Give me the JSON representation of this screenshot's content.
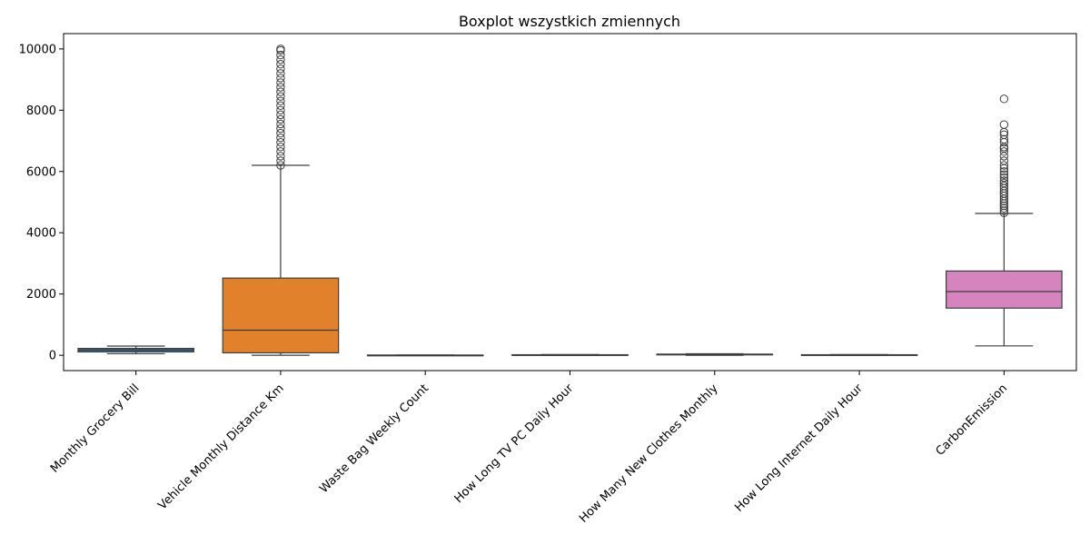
{
  "chart_data": {
    "type": "box",
    "title": "Boxplot wszystkich zmiennych",
    "xlabel": "",
    "ylabel": "",
    "ylim": [
      -500,
      10500
    ],
    "yticks": [
      0,
      2000,
      4000,
      6000,
      8000,
      10000
    ],
    "grid": false,
    "categories": [
      "Monthly Grocery Bill",
      "Vehicle Monthly Distance Km",
      "Waste Bag Weekly Count",
      "How Long TV PC Daily Hour",
      "How Many New Clothes Monthly",
      "How Long Internet Daily Hour",
      "CarbonEmission"
    ],
    "boxes": [
      {
        "min": 50,
        "q1": 110,
        "median": 170,
        "q3": 225,
        "max": 300,
        "color": "#3274a1",
        "fliers": []
      },
      {
        "min": 0,
        "q1": 80,
        "median": 820,
        "q3": 2520,
        "max": 6200,
        "color": "#e1812c",
        "fliers": [
          6200,
          6350,
          6500,
          6650,
          6800,
          6950,
          7100,
          7250,
          7400,
          7550,
          7700,
          7850,
          8000,
          8150,
          8300,
          8450,
          8600,
          8750,
          8900,
          9050,
          9200,
          9350,
          9500,
          9650,
          9800,
          9950,
          10000
        ]
      },
      {
        "min": 1,
        "q1": 2,
        "median": 4,
        "q3": 6,
        "max": 7,
        "color": "#3a923a",
        "fliers": []
      },
      {
        "min": 0,
        "q1": 6,
        "median": 12,
        "q3": 18,
        "max": 24,
        "color": "#c03d3e",
        "fliers": []
      },
      {
        "min": 0,
        "q1": 13,
        "median": 25,
        "q3": 38,
        "max": 50,
        "color": "#9372b2",
        "fliers": []
      },
      {
        "min": 0,
        "q1": 6,
        "median": 12,
        "q3": 18,
        "max": 24,
        "color": "#845b53",
        "fliers": []
      },
      {
        "min": 306,
        "q1": 1540,
        "median": 2080,
        "q3": 2750,
        "max": 4630,
        "color": "#d684bd",
        "fliers": [
          4650,
          4720,
          4800,
          4880,
          4950,
          5030,
          5110,
          5200,
          5280,
          5360,
          5450,
          5530,
          5620,
          5700,
          5800,
          5900,
          6000,
          6100,
          6200,
          6350,
          6500,
          6650,
          6750,
          6800,
          6950,
          7050,
          7200,
          7280,
          7530,
          8370
        ]
      }
    ]
  }
}
